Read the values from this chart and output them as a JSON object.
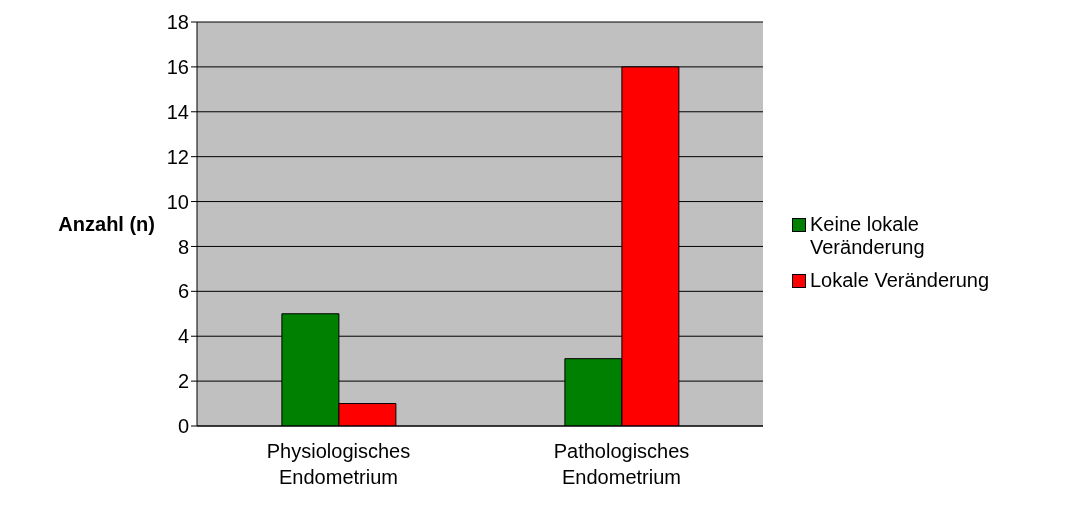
{
  "chart_data": {
    "type": "bar",
    "ylabel": "Anzahl (n)",
    "categories": [
      "Physiologisches Endometrium",
      "Pathologisches Endometrium"
    ],
    "series": [
      {
        "name": "Keine lokale Veränderung",
        "color": "#008000",
        "values": [
          5,
          3
        ]
      },
      {
        "name": "Lokale Veränderung",
        "color": "#ff0000",
        "values": [
          1,
          16
        ]
      }
    ],
    "ylim": [
      0,
      18
    ],
    "yticks": [
      0,
      2,
      4,
      6,
      8,
      10,
      12,
      14,
      16,
      18
    ],
    "grid": "y",
    "legend": "right"
  }
}
